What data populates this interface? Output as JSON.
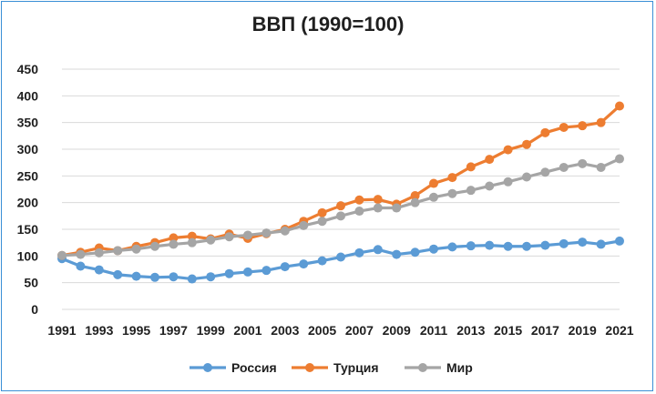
{
  "chart_data": {
    "type": "line",
    "title": "ВВП (1990=100)",
    "xlabel": "",
    "ylabel": "",
    "ylim": [
      0,
      450
    ],
    "yticks": [
      0,
      50,
      100,
      150,
      200,
      250,
      300,
      350,
      400,
      450
    ],
    "x": [
      1991,
      1992,
      1993,
      1994,
      1995,
      1996,
      1997,
      1998,
      1999,
      2000,
      2001,
      2002,
      2003,
      2004,
      2005,
      2006,
      2007,
      2008,
      2009,
      2010,
      2011,
      2012,
      2013,
      2014,
      2015,
      2016,
      2017,
      2018,
      2019,
      2020,
      2021
    ],
    "xtick_labels": [
      "1991",
      "1993",
      "1995",
      "1997",
      "1999",
      "2001",
      "2003",
      "2005",
      "2007",
      "2009",
      "2011",
      "2013",
      "2015",
      "2017",
      "2019",
      "2021"
    ],
    "grid": "horizontal",
    "legend_position": "bottom",
    "series": [
      {
        "name": "Россия",
        "color": "#5b9bd5",
        "values": [
          95,
          81,
          74,
          65,
          62,
          60,
          61,
          57,
          61,
          67,
          70,
          73,
          80,
          85,
          91,
          98,
          106,
          112,
          103,
          107,
          113,
          117,
          119,
          120,
          118,
          118,
          120,
          123,
          126,
          122,
          128
        ]
      },
      {
        "name": "Турция",
        "color": "#ed7d31",
        "values": [
          101,
          107,
          115,
          110,
          118,
          125,
          134,
          137,
          132,
          141,
          133,
          142,
          150,
          165,
          181,
          194,
          205,
          206,
          197,
          213,
          236,
          247,
          267,
          281,
          299,
          309,
          331,
          341,
          344,
          350,
          381
        ]
      },
      {
        "name": "Мир",
        "color": "#a5a5a5",
        "values": [
          101,
          103,
          106,
          110,
          113,
          118,
          122,
          125,
          130,
          136,
          139,
          143,
          147,
          157,
          165,
          175,
          184,
          190,
          190,
          200,
          210,
          217,
          223,
          231,
          239,
          248,
          257,
          266,
          273,
          266,
          282
        ]
      }
    ]
  }
}
